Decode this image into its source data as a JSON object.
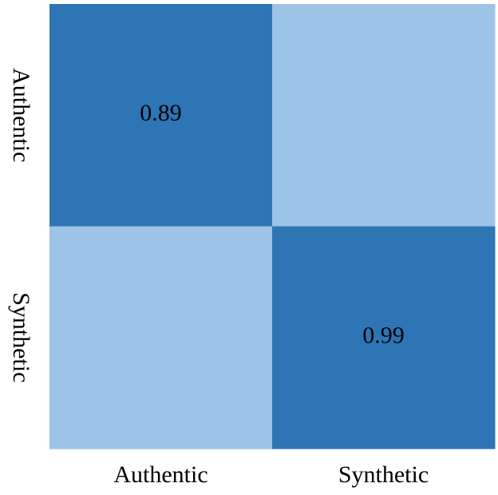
{
  "chart_data": {
    "type": "heatmap",
    "x_categories": [
      "Authentic",
      "Synthetic"
    ],
    "y_categories": [
      "Authentic",
      "Synthetic"
    ],
    "values": [
      [
        0.89,
        0.11
      ],
      [
        0.01,
        0.99
      ]
    ],
    "value_labels": [
      [
        "0.89",
        null
      ],
      [
        null,
        "0.99"
      ]
    ],
    "cell_colors": [
      [
        "#2e75b6",
        "#9dc3e6"
      ],
      [
        "#9dc3e6",
        "#2e75b6"
      ]
    ]
  }
}
